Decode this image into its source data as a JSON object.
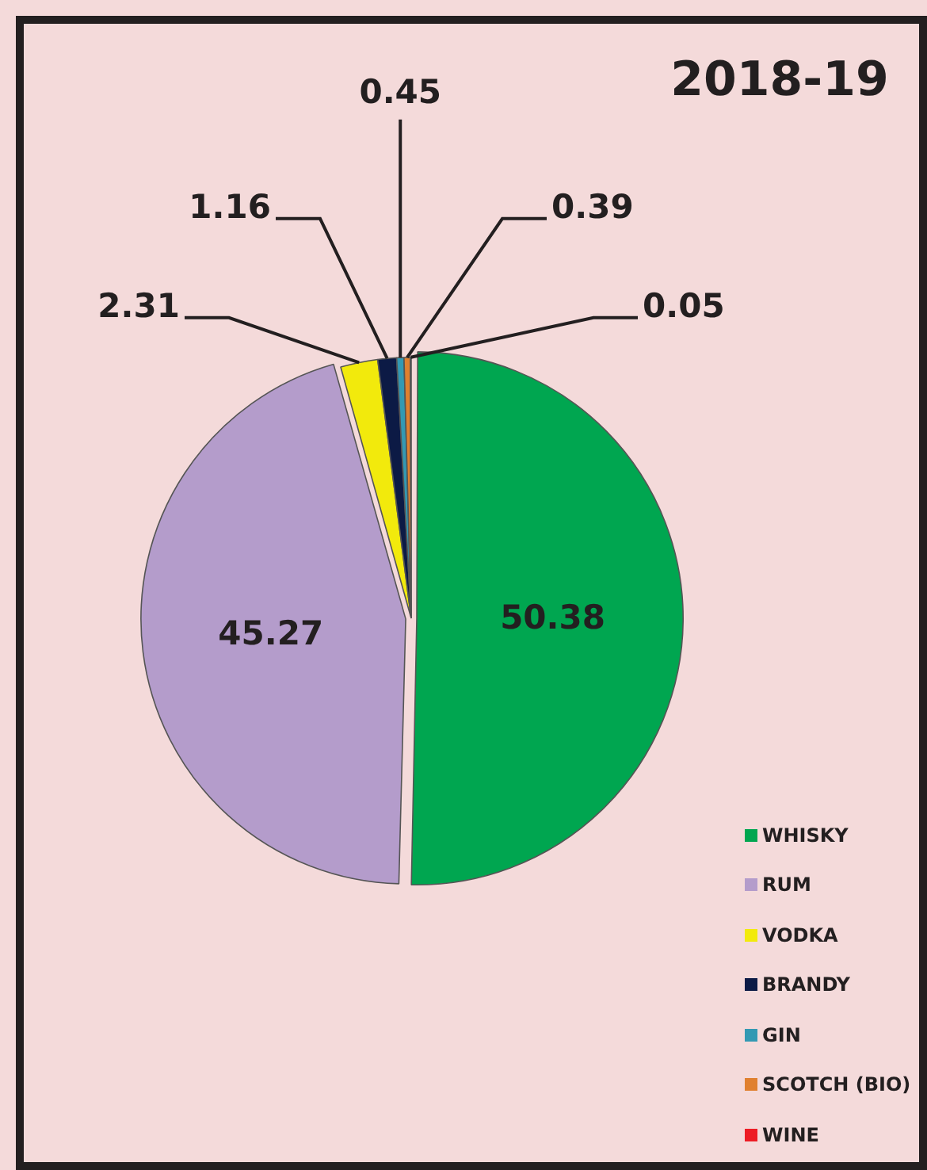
{
  "chart_data": {
    "type": "pie",
    "title": "2018-19",
    "categories": [
      "WHISKY",
      "RUM",
      "VODKA",
      "BRANDY",
      "GIN",
      "SCOTCH (BIO)",
      "WINE"
    ],
    "values": [
      50.38,
      45.27,
      2.31,
      1.16,
      0.45,
      0.39,
      0.05
    ],
    "colors": [
      "#00a650",
      "#b49ccb",
      "#f2ea0c",
      "#0c1a45",
      "#3399b3",
      "#e0802f",
      "#ed1c24"
    ],
    "data_labels": true,
    "legend": "bottom right"
  }
}
